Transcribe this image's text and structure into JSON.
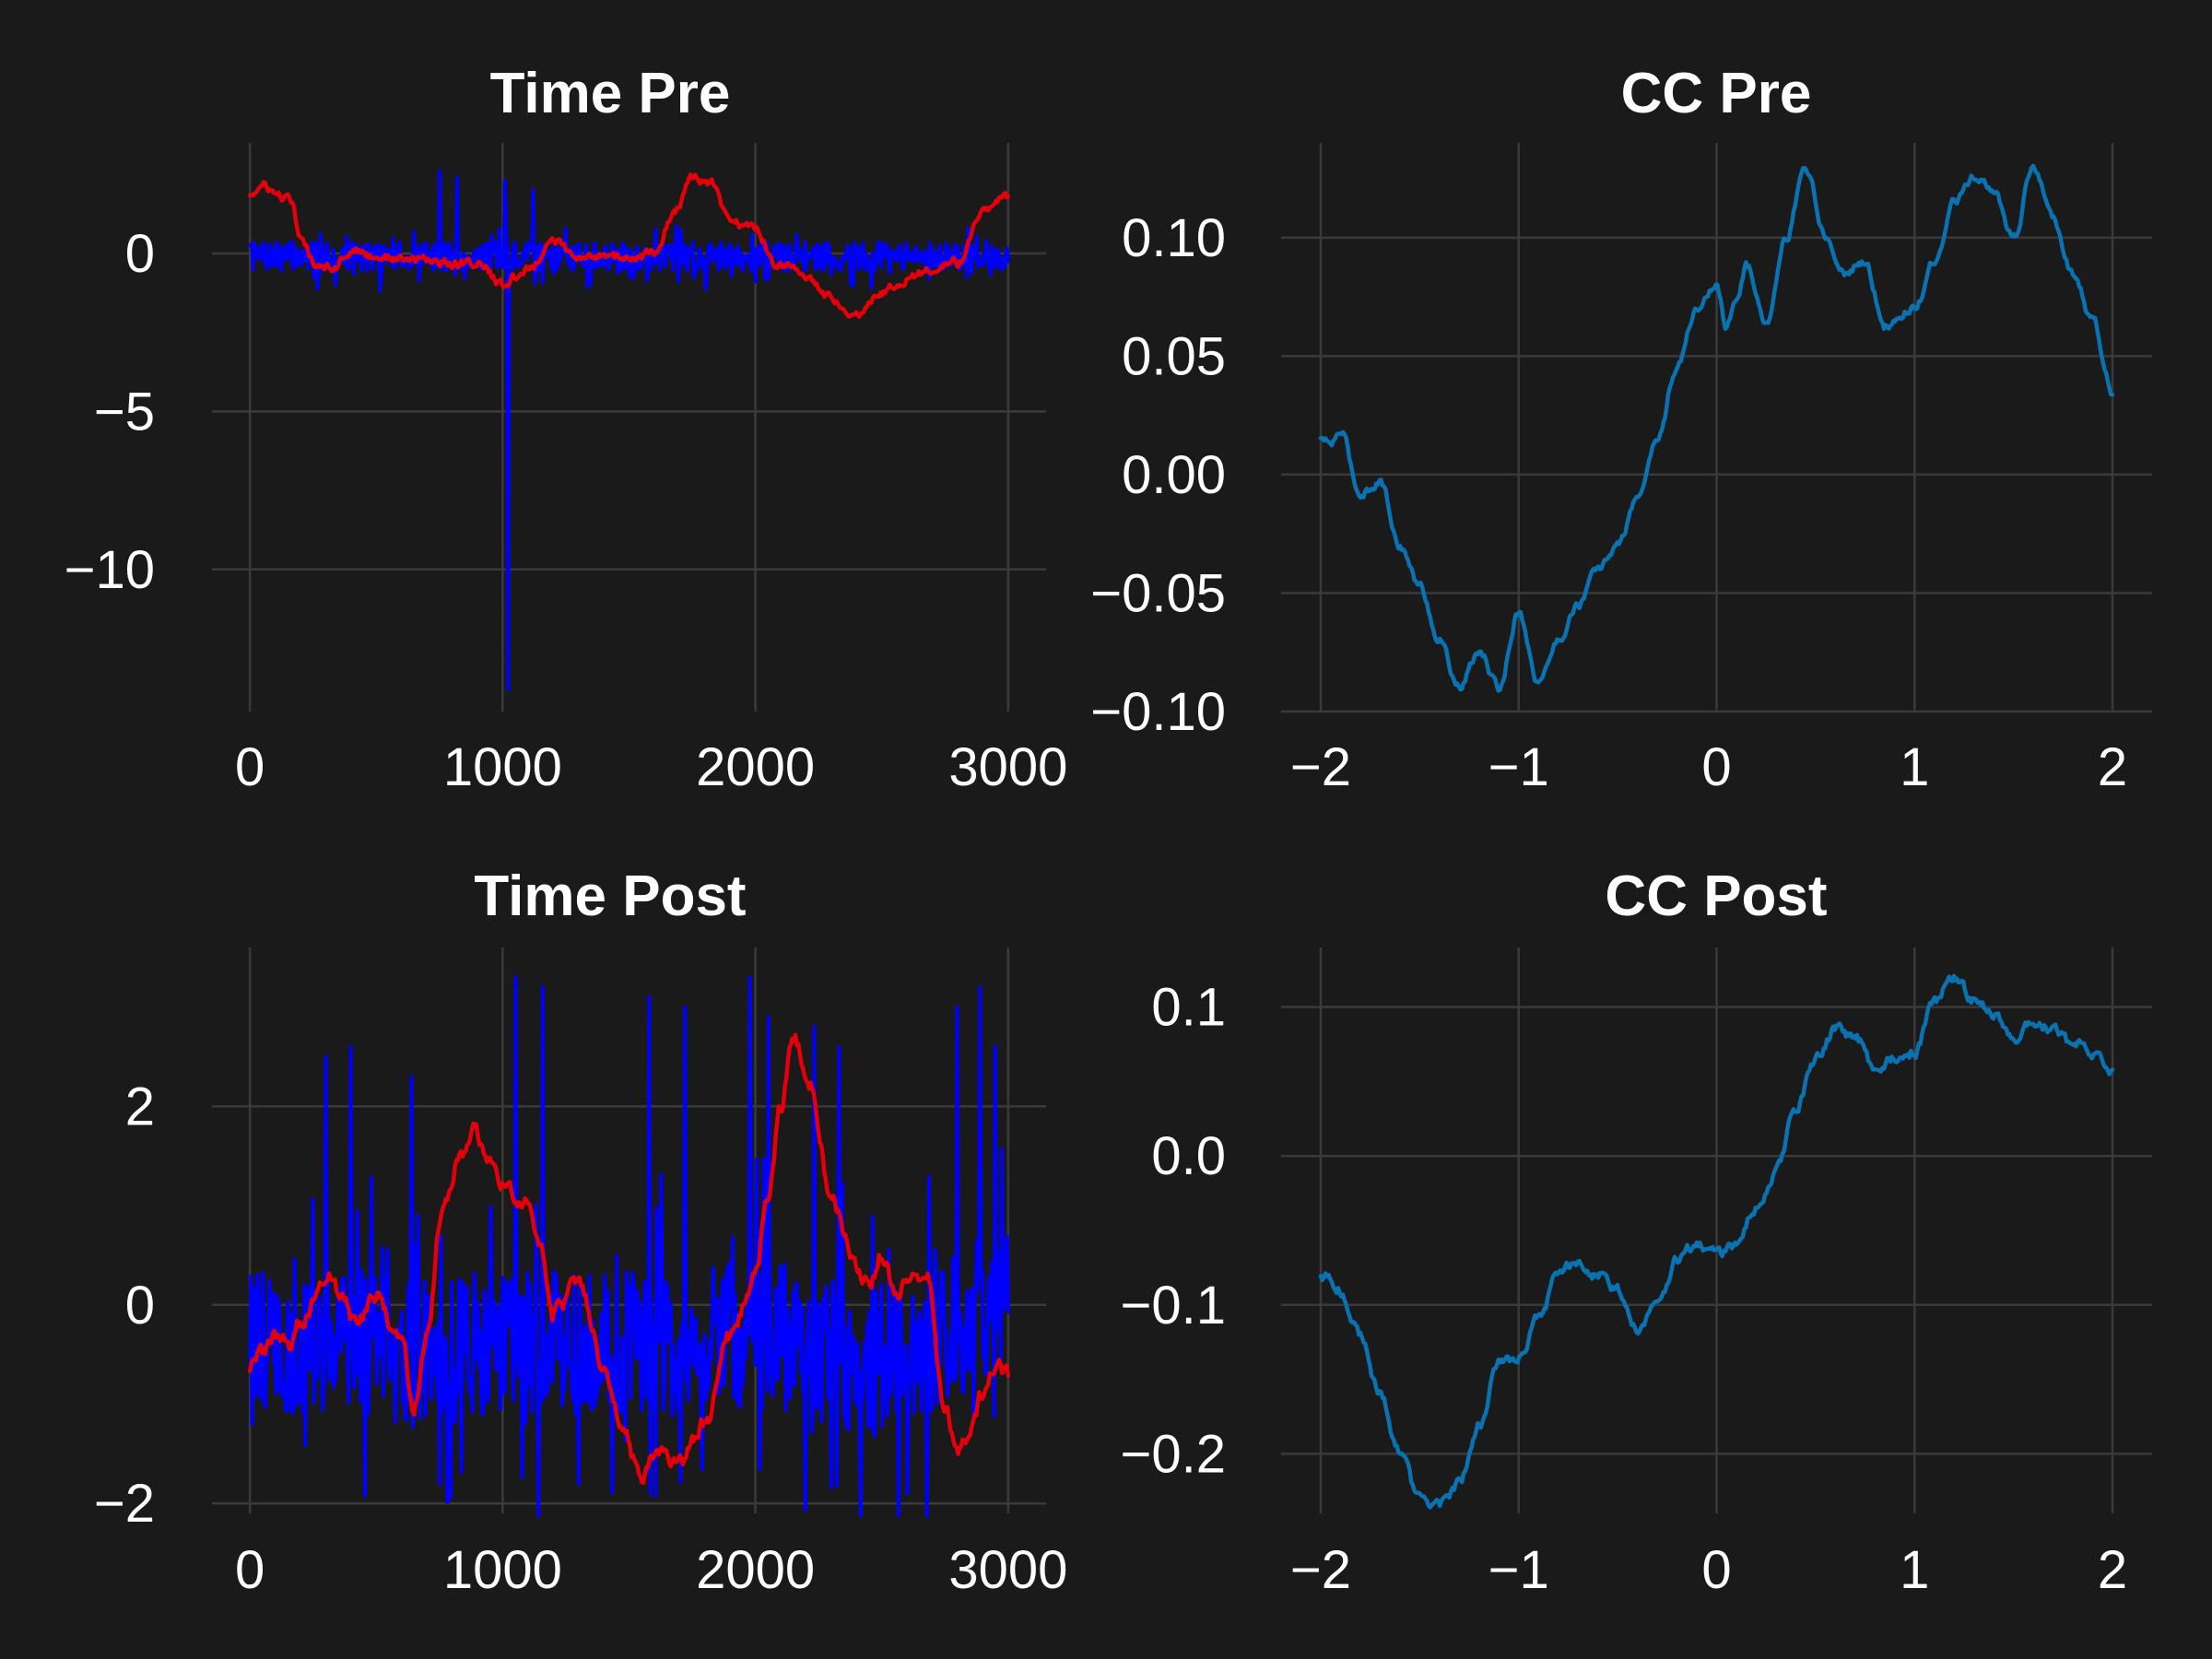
{
  "colors": {
    "background": "#1a1a1a",
    "signal_blue": "#0000ff",
    "signal_red": "#e3000b",
    "cc_line": "#0a72b0",
    "grid": "#3a3a3a",
    "text": "#ffffff"
  },
  "chart_data": [
    {
      "id": "time_pre",
      "type": "line",
      "title": "Time Pre",
      "xlabel": "",
      "ylabel": "",
      "xlim": [
        -150,
        3150
      ],
      "ylim": [
        -14.5,
        3.5
      ],
      "xticks": [
        0,
        1000,
        2000,
        3000
      ],
      "xtick_labels": [
        "0",
        "1000",
        "2000",
        "3000"
      ],
      "yticks": [
        0,
        -5,
        -10
      ],
      "ytick_labels": [
        "0",
        "−5",
        "−10"
      ],
      "grid": true,
      "series": [
        {
          "color": "#0000ff",
          "style": "noisy",
          "x": [
            0,
            3000
          ],
          "base": [
            [
              0,
              -0.1
            ],
            [
              3000,
              -0.1
            ]
          ],
          "noise": 0.45,
          "spikes": [
            [
              750,
              2.6
            ],
            [
              820,
              2.4
            ],
            [
              1010,
              2.3
            ],
            [
              1020,
              -13.8
            ],
            [
              1120,
              2.0
            ],
            [
              2000,
              -0.9
            ],
            [
              2050,
              -0.8
            ]
          ]
        },
        {
          "color": "#e3000b",
          "style": "smooth",
          "points": [
            [
              0,
              1.9
            ],
            [
              60,
              2.1
            ],
            [
              120,
              1.8
            ],
            [
              160,
              1.7
            ],
            [
              200,
              0.4
            ],
            [
              260,
              -0.3
            ],
            [
              330,
              -0.4
            ],
            [
              400,
              0.1
            ],
            [
              500,
              -0.1
            ],
            [
              600,
              -0.2
            ],
            [
              700,
              -0.2
            ],
            [
              800,
              -0.3
            ],
            [
              900,
              -0.3
            ],
            [
              1000,
              -1.0
            ],
            [
              1100,
              -0.5
            ],
            [
              1200,
              0.4
            ],
            [
              1300,
              -0.2
            ],
            [
              1400,
              0.0
            ],
            [
              1500,
              -0.2
            ],
            [
              1600,
              0.0
            ],
            [
              1680,
              1.3
            ],
            [
              1750,
              2.4
            ],
            [
              1820,
              2.2
            ],
            [
              1900,
              1.0
            ],
            [
              2000,
              0.8
            ],
            [
              2080,
              -0.3
            ],
            [
              2200,
              -0.7
            ],
            [
              2300,
              -1.4
            ],
            [
              2400,
              -1.9
            ],
            [
              2500,
              -1.2
            ],
            [
              2600,
              -0.8
            ],
            [
              2700,
              -0.5
            ],
            [
              2800,
              -0.3
            ],
            [
              2900,
              1.3
            ],
            [
              3000,
              1.8
            ]
          ],
          "noise": 0.12
        }
      ]
    },
    {
      "id": "cc_pre",
      "type": "line",
      "title": "CC Pre",
      "xlabel": "",
      "ylabel": "",
      "xlim": [
        -2.2,
        2.2
      ],
      "ylim": [
        -0.1,
        0.14
      ],
      "xticks": [
        -2,
        -1,
        0,
        1,
        2
      ],
      "xtick_labels": [
        "−2",
        "−1",
        "0",
        "1",
        "2"
      ],
      "yticks": [
        0.1,
        0.05,
        0.0,
        -0.05,
        -0.1
      ],
      "ytick_labels": [
        "0.10",
        "0.05",
        "0.00",
        "−0.05",
        "−0.10"
      ],
      "grid": true,
      "series": [
        {
          "color": "#0a72b0",
          "style": "smooth",
          "points": [
            [
              -2.0,
              0.015
            ],
            [
              -1.95,
              0.013
            ],
            [
              -1.9,
              0.018
            ],
            [
              -1.8,
              -0.008
            ],
            [
              -1.7,
              -0.003
            ],
            [
              -1.6,
              -0.03
            ],
            [
              -1.5,
              -0.047
            ],
            [
              -1.4,
              -0.07
            ],
            [
              -1.3,
              -0.09
            ],
            [
              -1.2,
              -0.075
            ],
            [
              -1.1,
              -0.09
            ],
            [
              -1.0,
              -0.058
            ],
            [
              -0.9,
              -0.088
            ],
            [
              -0.8,
              -0.07
            ],
            [
              -0.7,
              -0.055
            ],
            [
              -0.6,
              -0.04
            ],
            [
              -0.5,
              -0.03
            ],
            [
              -0.4,
              -0.01
            ],
            [
              -0.3,
              0.015
            ],
            [
              -0.2,
              0.045
            ],
            [
              -0.1,
              0.07
            ],
            [
              0.0,
              0.08
            ],
            [
              0.05,
              0.062
            ],
            [
              0.1,
              0.075
            ],
            [
              0.15,
              0.088
            ],
            [
              0.25,
              0.065
            ],
            [
              0.35,
              0.1
            ],
            [
              0.45,
              0.13
            ],
            [
              0.55,
              0.1
            ],
            [
              0.65,
              0.085
            ],
            [
              0.75,
              0.09
            ],
            [
              0.85,
              0.062
            ],
            [
              1.0,
              0.07
            ],
            [
              1.1,
              0.09
            ],
            [
              1.2,
              0.115
            ],
            [
              1.3,
              0.125
            ],
            [
              1.4,
              0.12
            ],
            [
              1.5,
              0.1
            ],
            [
              1.6,
              0.13
            ],
            [
              1.7,
              0.108
            ],
            [
              1.8,
              0.085
            ],
            [
              1.9,
              0.065
            ],
            [
              2.0,
              0.035
            ]
          ],
          "noise": 0.0015
        }
      ]
    },
    {
      "id": "time_post",
      "type": "line",
      "title": "Time Post",
      "xlabel": "",
      "ylabel": "",
      "xlim": [
        -150,
        3150
      ],
      "ylim": [
        -2.1,
        3.6
      ],
      "xticks": [
        0,
        1000,
        2000,
        3000
      ],
      "xtick_labels": [
        "0",
        "1000",
        "2000",
        "3000"
      ],
      "yticks": [
        2,
        0,
        -2
      ],
      "ytick_labels": [
        "2",
        "0",
        "−2"
      ],
      "grid": true,
      "series": [
        {
          "color": "#0000ff",
          "style": "noisy",
          "x": [
            0,
            3000
          ],
          "base": [
            [
              0,
              -0.4
            ],
            [
              500,
              -0.4
            ],
            [
              700,
              -0.5
            ],
            [
              1000,
              -0.4
            ],
            [
              1500,
              -0.4
            ],
            [
              2000,
              -0.3
            ],
            [
              2500,
              -0.6
            ],
            [
              3000,
              0.0
            ]
          ],
          "noise": 0.75,
          "spikes": [
            [
              300,
              2.5
            ],
            [
              400,
              2.6
            ],
            [
              640,
              2.3
            ],
            [
              750,
              -1.8
            ],
            [
              1050,
              3.3
            ],
            [
              1160,
              3.2
            ],
            [
              1300,
              -1.8
            ],
            [
              1580,
              3.1
            ],
            [
              1720,
              3.0
            ],
            [
              1980,
              3.3
            ],
            [
              2050,
              2.9
            ],
            [
              2230,
              2.8
            ],
            [
              2330,
              2.6
            ],
            [
              2600,
              -1.9
            ],
            [
              2800,
              3.0
            ],
            [
              2890,
              3.2
            ],
            [
              2950,
              2.6
            ]
          ]
        },
        {
          "color": "#e3000b",
          "style": "smooth",
          "points": [
            [
              0,
              -0.6
            ],
            [
              50,
              -0.5
            ],
            [
              100,
              -0.3
            ],
            [
              150,
              -0.4
            ],
            [
              200,
              -0.2
            ],
            [
              300,
              0.3
            ],
            [
              360,
              0.1
            ],
            [
              420,
              -0.2
            ],
            [
              500,
              0.1
            ],
            [
              600,
              -0.4
            ],
            [
              650,
              -1.0
            ],
            [
              700,
              -0.3
            ],
            [
              760,
              0.9
            ],
            [
              830,
              1.5
            ],
            [
              880,
              1.75
            ],
            [
              950,
              1.5
            ],
            [
              1000,
              1.2
            ],
            [
              1100,
              1.0
            ],
            [
              1150,
              0.6
            ],
            [
              1200,
              -0.1
            ],
            [
              1300,
              0.2
            ],
            [
              1400,
              -0.6
            ],
            [
              1480,
              -1.3
            ],
            [
              1550,
              -1.8
            ],
            [
              1600,
              -1.5
            ],
            [
              1700,
              -1.6
            ],
            [
              1800,
              -1.2
            ],
            [
              1900,
              -0.3
            ],
            [
              2000,
              0.3
            ],
            [
              2050,
              1.1
            ],
            [
              2100,
              2.0
            ],
            [
              2150,
              2.7
            ],
            [
              2220,
              2.2
            ],
            [
              2300,
              1.1
            ],
            [
              2400,
              0.4
            ],
            [
              2450,
              0.2
            ],
            [
              2500,
              0.5
            ],
            [
              2560,
              0.1
            ],
            [
              2620,
              0.3
            ],
            [
              2680,
              0.3
            ],
            [
              2750,
              -1.1
            ],
            [
              2800,
              -1.5
            ],
            [
              2850,
              -1.3
            ],
            [
              2900,
              -0.9
            ],
            [
              2950,
              -0.6
            ],
            [
              3000,
              -0.7
            ]
          ],
          "noise": 0.07
        }
      ]
    },
    {
      "id": "cc_post",
      "type": "line",
      "title": "CC Post",
      "xlabel": "",
      "ylabel": "",
      "xlim": [
        -2.2,
        2.2
      ],
      "ylim": [
        -0.24,
        0.14
      ],
      "xticks": [
        -2,
        -1,
        0,
        1,
        2
      ],
      "xtick_labels": [
        "−2",
        "−1",
        "0",
        "1",
        "2"
      ],
      "yticks": [
        0.1,
        0.0,
        -0.1,
        -0.2
      ],
      "ytick_labels": [
        "0.1",
        "0.0",
        "−0.1",
        "−0.2"
      ],
      "grid": true,
      "series": [
        {
          "color": "#0a72b0",
          "style": "smooth",
          "points": [
            [
              -2.0,
              -0.08
            ],
            [
              -1.9,
              -0.09
            ],
            [
              -1.8,
              -0.12
            ],
            [
              -1.7,
              -0.16
            ],
            [
              -1.6,
              -0.2
            ],
            [
              -1.5,
              -0.23
            ],
            [
              -1.4,
              -0.235
            ],
            [
              -1.3,
              -0.22
            ],
            [
              -1.2,
              -0.18
            ],
            [
              -1.1,
              -0.14
            ],
            [
              -1.0,
              -0.135
            ],
            [
              -0.9,
              -0.11
            ],
            [
              -0.8,
              -0.08
            ],
            [
              -0.7,
              -0.07
            ],
            [
              -0.6,
              -0.08
            ],
            [
              -0.5,
              -0.09
            ],
            [
              -0.4,
              -0.115
            ],
            [
              -0.3,
              -0.1
            ],
            [
              -0.2,
              -0.07
            ],
            [
              -0.1,
              -0.06
            ],
            [
              0.0,
              -0.065
            ],
            [
              0.1,
              -0.06
            ],
            [
              0.2,
              -0.035
            ],
            [
              0.3,
              -0.01
            ],
            [
              0.4,
              0.03
            ],
            [
              0.5,
              0.065
            ],
            [
              0.6,
              0.085
            ],
            [
              0.7,
              0.08
            ],
            [
              0.8,
              0.06
            ],
            [
              0.9,
              0.065
            ],
            [
              1.0,
              0.07
            ],
            [
              1.1,
              0.105
            ],
            [
              1.2,
              0.12
            ],
            [
              1.3,
              0.105
            ],
            [
              1.4,
              0.095
            ],
            [
              1.5,
              0.08
            ],
            [
              1.6,
              0.09
            ],
            [
              1.7,
              0.085
            ],
            [
              1.8,
              0.075
            ],
            [
              1.9,
              0.07
            ],
            [
              2.0,
              0.055
            ]
          ],
          "noise": 0.003
        }
      ]
    }
  ]
}
